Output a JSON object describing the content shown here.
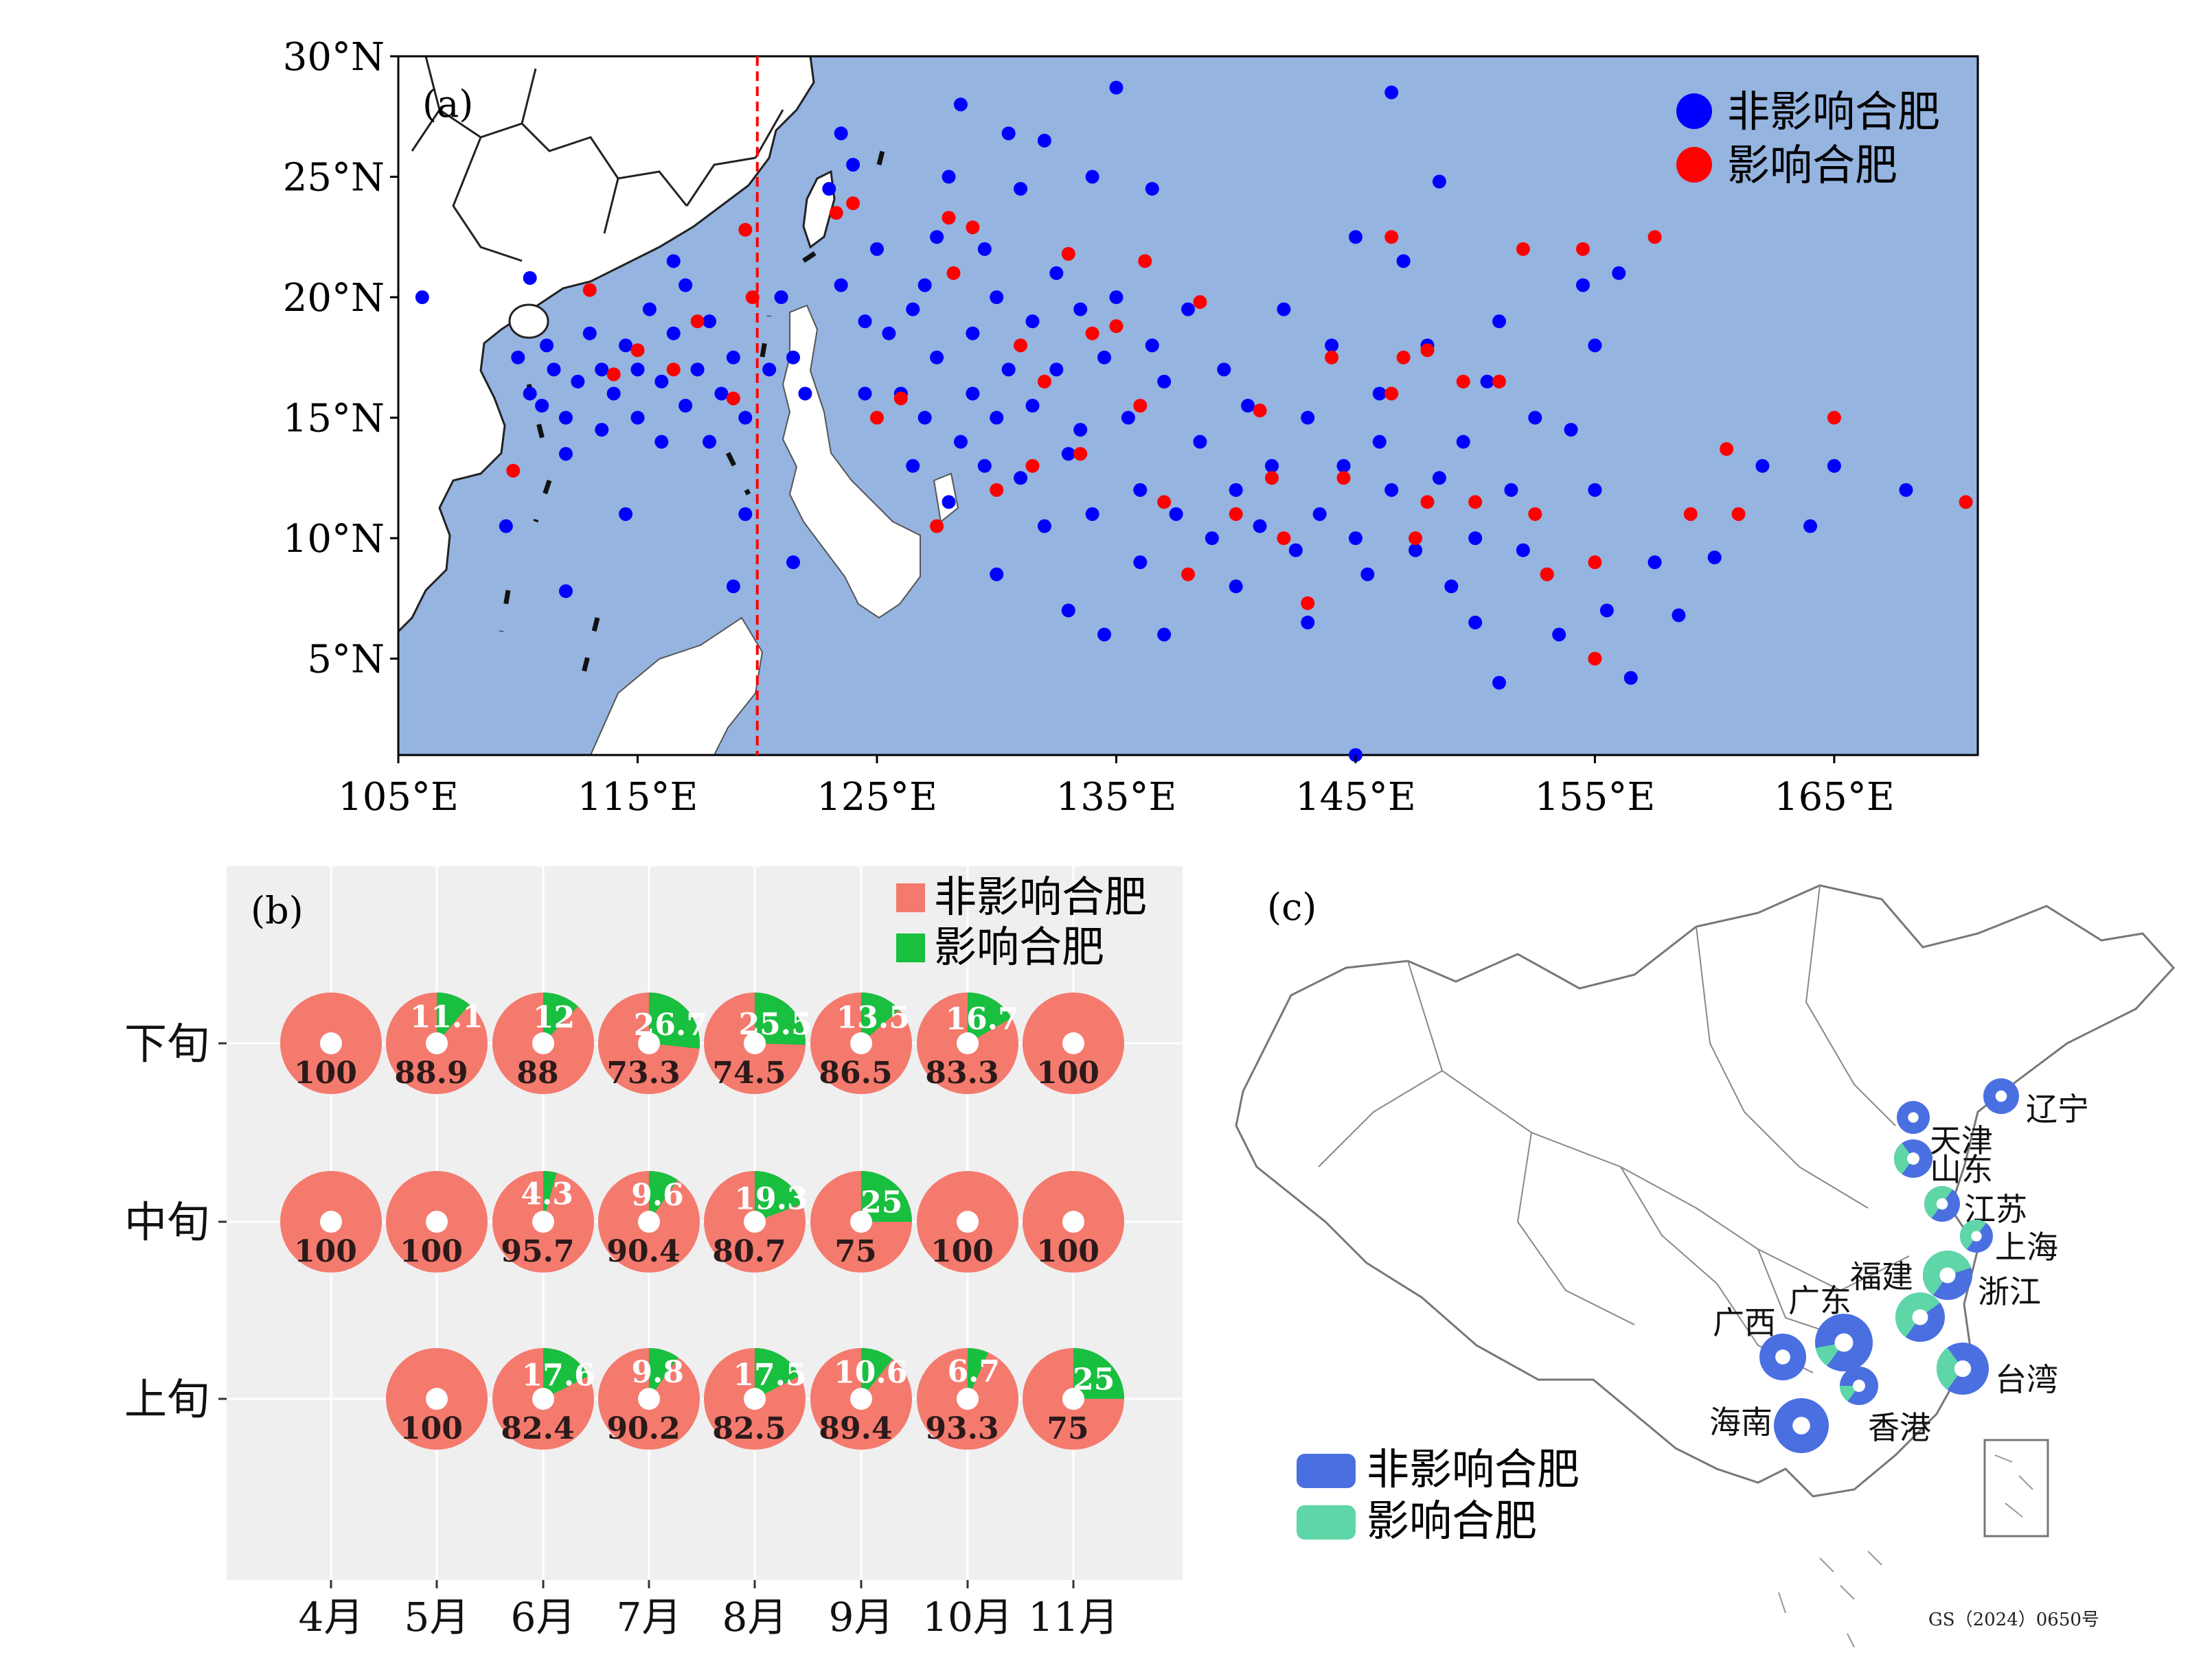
{
  "colors": {
    "ocean": "#95B4E0",
    "land": "#ffffff",
    "coast": "#222222",
    "non_affect_dot": "#0000FF",
    "affect_dot": "#FF0000",
    "boundary_line": "#FF0000",
    "pie_non_affect": "#F47A6E",
    "pie_affect": "#19BF3F",
    "panel_b_bg": "#EFEFEF",
    "map_non_affect": "#4A6FE0",
    "map_affect": "#5ED6A8"
  },
  "chart_data": [
    {
      "panel": "(a)",
      "type": "scatter",
      "title": "",
      "legend_position": "top-right",
      "xlim": [
        105,
        171
      ],
      "ylim": [
        1,
        30
      ],
      "x_ticks": [
        105,
        115,
        125,
        135,
        145,
        155,
        165
      ],
      "x_tick_labels": [
        "105°E",
        "115°E",
        "125°E",
        "135°E",
        "145°E",
        "155°E",
        "165°E"
      ],
      "y_ticks": [
        5,
        10,
        15,
        20,
        25,
        30
      ],
      "y_tick_labels": [
        "5°N",
        "10°N",
        "15°N",
        "20°N",
        "25°N",
        "30°N"
      ],
      "reference_line_lon": 120,
      "series": [
        {
          "name": "非影响合肥",
          "points": [
            [
              106.0,
              20.0
            ],
            [
              109.5,
              10.5
            ],
            [
              110.0,
              17.5
            ],
            [
              110.5,
              16.0
            ],
            [
              111.0,
              15.5
            ],
            [
              111.2,
              18.0
            ],
            [
              111.5,
              17.0
            ],
            [
              112.0,
              15.0
            ],
            [
              112.0,
              13.5
            ],
            [
              112.5,
              16.5
            ],
            [
              113.0,
              18.5
            ],
            [
              113.5,
              14.5
            ],
            [
              113.5,
              17.0
            ],
            [
              114.0,
              16.0
            ],
            [
              114.5,
              18.0
            ],
            [
              115.0,
              15.0
            ],
            [
              115.0,
              17.0
            ],
            [
              115.5,
              19.5
            ],
            [
              116.0,
              16.5
            ],
            [
              116.0,
              14.0
            ],
            [
              116.5,
              18.5
            ],
            [
              117.0,
              20.5
            ],
            [
              117.0,
              15.5
            ],
            [
              117.5,
              17.0
            ],
            [
              118.0,
              14.0
            ],
            [
              118.0,
              19.0
            ],
            [
              118.5,
              16.0
            ],
            [
              119.0,
              17.5
            ],
            [
              119.0,
              8.0
            ],
            [
              119.5,
              15.0
            ],
            [
              120.5,
              17.0
            ],
            [
              121.0,
              20.0
            ],
            [
              121.5,
              17.5
            ],
            [
              122.0,
              16.0
            ],
            [
              121.5,
              9.0
            ],
            [
              112.0,
              7.8
            ],
            [
              114.5,
              11.0
            ],
            [
              110.5,
              20.8
            ],
            [
              116.5,
              21.5
            ],
            [
              119.5,
              11.0
            ],
            [
              123.0,
              24.5
            ],
            [
              123.5,
              26.8
            ],
            [
              124.0,
              25.5
            ],
            [
              123.5,
              20.5
            ],
            [
              124.5,
              19.0
            ],
            [
              124.5,
              16.0
            ],
            [
              125.0,
              22.0
            ],
            [
              125.5,
              18.5
            ],
            [
              126.0,
              16.0
            ],
            [
              126.5,
              19.5
            ],
            [
              126.5,
              13.0
            ],
            [
              127.0,
              20.5
            ],
            [
              127.0,
              15.0
            ],
            [
              127.5,
              17.5
            ],
            [
              128.0,
              25.0
            ],
            [
              128.0,
              11.5
            ],
            [
              128.5,
              28.0
            ],
            [
              128.5,
              14.0
            ],
            [
              129.0,
              18.5
            ],
            [
              129.0,
              16.0
            ],
            [
              129.5,
              13.0
            ],
            [
              130.0,
              20.0
            ],
            [
              130.0,
              15.0
            ],
            [
              130.5,
              26.8
            ],
            [
              130.5,
              17.0
            ],
            [
              131.0,
              12.5
            ],
            [
              131.0,
              24.5
            ],
            [
              131.5,
              19.0
            ],
            [
              131.5,
              15.5
            ],
            [
              132.0,
              26.5
            ],
            [
              132.0,
              10.5
            ],
            [
              132.5,
              21.0
            ],
            [
              132.5,
              17.0
            ],
            [
              133.0,
              13.5
            ],
            [
              133.5,
              19.5
            ],
            [
              133.5,
              14.5
            ],
            [
              134.0,
              25.0
            ],
            [
              134.0,
              11.0
            ],
            [
              134.5,
              17.5
            ],
            [
              135.0,
              28.7
            ],
            [
              135.0,
              20.0
            ],
            [
              135.5,
              15.0
            ],
            [
              136.0,
              12.0
            ],
            [
              136.0,
              9.0
            ],
            [
              136.5,
              24.5
            ],
            [
              136.5,
              18.0
            ],
            [
              137.0,
              16.5
            ],
            [
              137.5,
              11.0
            ],
            [
              138.0,
              19.5
            ],
            [
              138.5,
              14.0
            ],
            [
              139.0,
              10.0
            ],
            [
              139.5,
              17.0
            ],
            [
              140.0,
              12.0
            ],
            [
              140.0,
              8.0
            ],
            [
              140.5,
              15.5
            ],
            [
              141.0,
              10.5
            ],
            [
              141.5,
              13.0
            ],
            [
              142.0,
              19.5
            ],
            [
              142.5,
              9.5
            ],
            [
              143.0,
              15.0
            ],
            [
              143.5,
              11.0
            ],
            [
              144.0,
              18.0
            ],
            [
              144.5,
              13.0
            ],
            [
              145.0,
              10.0
            ],
            [
              145.0,
              22.5
            ],
            [
              145.5,
              8.5
            ],
            [
              146.0,
              16.0
            ],
            [
              146.5,
              28.5
            ],
            [
              146.5,
              12.0
            ],
            [
              147.0,
              21.5
            ],
            [
              147.5,
              9.5
            ],
            [
              148.0,
              18.0
            ],
            [
              148.5,
              24.8
            ],
            [
              148.5,
              12.5
            ],
            [
              149.5,
              14.0
            ],
            [
              150.0,
              10.0
            ],
            [
              150.0,
              6.5
            ],
            [
              150.5,
              16.5
            ],
            [
              151.0,
              19.0
            ],
            [
              151.0,
              4.0
            ],
            [
              151.5,
              12.0
            ],
            [
              152.0,
              9.5
            ],
            [
              152.5,
              15.0
            ],
            [
              153.0,
              8.5
            ],
            [
              153.5,
              6.0
            ],
            [
              154.0,
              14.5
            ],
            [
              154.5,
              20.5
            ],
            [
              155.0,
              12.0
            ],
            [
              155.0,
              18.0
            ],
            [
              155.5,
              7.0
            ],
            [
              156.0,
              21.0
            ],
            [
              156.5,
              4.2
            ],
            [
              157.5,
              9.0
            ],
            [
              158.5,
              6.8
            ],
            [
              160.0,
              9.2
            ],
            [
              162.0,
              13.0
            ],
            [
              164.0,
              10.5
            ],
            [
              165.0,
              13.0
            ],
            [
              168.0,
              12.0
            ],
            [
              145.0,
              1.0
            ],
            [
              133.0,
              7.0
            ],
            [
              137.0,
              6.0
            ],
            [
              143.0,
              6.5
            ],
            [
              146.0,
              14.0
            ],
            [
              149.0,
              8.0
            ],
            [
              130.0,
              8.5
            ],
            [
              129.5,
              22.0
            ],
            [
              127.5,
              22.5
            ],
            [
              134.5,
              6.0
            ]
          ]
        },
        {
          "name": "影响合肥",
          "points": [
            [
              109.8,
              12.8
            ],
            [
              113.0,
              20.3
            ],
            [
              114.0,
              16.8
            ],
            [
              115.0,
              17.8
            ],
            [
              116.5,
              17.0
            ],
            [
              117.5,
              19.0
            ],
            [
              119.0,
              15.8
            ],
            [
              119.5,
              22.8
            ],
            [
              119.8,
              20.0
            ],
            [
              123.3,
              23.5
            ],
            [
              124.0,
              23.9
            ],
            [
              125.0,
              15.0
            ],
            [
              126.0,
              15.8
            ],
            [
              127.5,
              10.5
            ],
            [
              128.0,
              23.3
            ],
            [
              129.0,
              22.9
            ],
            [
              128.2,
              21.0
            ],
            [
              130.0,
              12.0
            ],
            [
              131.0,
              18.0
            ],
            [
              131.5,
              13.0
            ],
            [
              132.0,
              16.5
            ],
            [
              133.0,
              21.8
            ],
            [
              133.5,
              13.5
            ],
            [
              134.0,
              18.5
            ],
            [
              135.0,
              18.8
            ],
            [
              136.0,
              15.5
            ],
            [
              136.2,
              21.5
            ],
            [
              137.0,
              11.5
            ],
            [
              138.0,
              8.5
            ],
            [
              138.5,
              19.8
            ],
            [
              140.0,
              11.0
            ],
            [
              141.0,
              15.3
            ],
            [
              141.5,
              12.5
            ],
            [
              142.0,
              10.0
            ],
            [
              143.0,
              7.3
            ],
            [
              144.0,
              17.5
            ],
            [
              144.5,
              12.5
            ],
            [
              146.5,
              22.5
            ],
            [
              146.5,
              16.0
            ],
            [
              147.0,
              17.5
            ],
            [
              147.5,
              10.0
            ],
            [
              148.0,
              11.5
            ],
            [
              148.0,
              17.8
            ],
            [
              149.5,
              16.5
            ],
            [
              150.0,
              11.5
            ],
            [
              151.0,
              16.5
            ],
            [
              152.0,
              22.0
            ],
            [
              152.5,
              11.0
            ],
            [
              153.0,
              8.5
            ],
            [
              154.5,
              22.0
            ],
            [
              155.0,
              9.0
            ],
            [
              155.0,
              5.0
            ],
            [
              157.5,
              22.5
            ],
            [
              159.0,
              11.0
            ],
            [
              160.5,
              13.7
            ],
            [
              161.0,
              11.0
            ],
            [
              165.0,
              15.0
            ],
            [
              170.5,
              11.5
            ]
          ]
        }
      ]
    },
    {
      "panel": "(b)",
      "type": "pie",
      "legend_position": "top-right",
      "months": [
        "4月",
        "5月",
        "6月",
        "7月",
        "8月",
        "9月",
        "10月",
        "11月"
      ],
      "rows": [
        "下旬",
        "中旬",
        "上旬"
      ],
      "series_names": [
        "非影响合肥",
        "影响合肥"
      ],
      "cells": [
        {
          "row": "下旬",
          "month": "4月",
          "non_affect": "100",
          "affect": ""
        },
        {
          "row": "下旬",
          "month": "5月",
          "non_affect": "88.9",
          "affect": "11.1"
        },
        {
          "row": "下旬",
          "month": "6月",
          "non_affect": "88",
          "affect": "12"
        },
        {
          "row": "下旬",
          "month": "7月",
          "non_affect": "73.3",
          "affect": "26.7"
        },
        {
          "row": "下旬",
          "month": "8月",
          "non_affect": "74.5",
          "affect": "25.5"
        },
        {
          "row": "下旬",
          "month": "9月",
          "non_affect": "86.5",
          "affect": "13.5"
        },
        {
          "row": "下旬",
          "month": "10月",
          "non_affect": "83.3",
          "affect": "16.7"
        },
        {
          "row": "下旬",
          "month": "11月",
          "non_affect": "100",
          "affect": ""
        },
        {
          "row": "中旬",
          "month": "4月",
          "non_affect": "100",
          "affect": ""
        },
        {
          "row": "中旬",
          "month": "5月",
          "non_affect": "100",
          "affect": ""
        },
        {
          "row": "中旬",
          "month": "6月",
          "non_affect": "95.7",
          "affect": "4.3"
        },
        {
          "row": "中旬",
          "month": "7月",
          "non_affect": "90.4",
          "affect": "9.6"
        },
        {
          "row": "中旬",
          "month": "8月",
          "non_affect": "80.7",
          "affect": "19.3"
        },
        {
          "row": "中旬",
          "month": "9月",
          "non_affect": "75",
          "affect": "25"
        },
        {
          "row": "中旬",
          "month": "10月",
          "non_affect": "100",
          "affect": ""
        },
        {
          "row": "中旬",
          "month": "11月",
          "non_affect": "100",
          "affect": ""
        },
        {
          "row": "上旬",
          "month": "5月",
          "non_affect": "100",
          "affect": ""
        },
        {
          "row": "上旬",
          "month": "6月",
          "non_affect": "82.4",
          "affect": "17.6"
        },
        {
          "row": "上旬",
          "month": "7月",
          "non_affect": "90.2",
          "affect": "9.8"
        },
        {
          "row": "上旬",
          "month": "8月",
          "non_affect": "82.5",
          "affect": "17.5"
        },
        {
          "row": "上旬",
          "month": "9月",
          "non_affect": "89.4",
          "affect": "10.6"
        },
        {
          "row": "上旬",
          "month": "10月",
          "non_affect": "93.3",
          "affect": "6.7"
        },
        {
          "row": "上旬",
          "month": "11月",
          "non_affect": "75",
          "affect": "25"
        }
      ]
    },
    {
      "panel": "(c)",
      "type": "pie",
      "legend_position": "bottom-left",
      "series_names": [
        "非影响合肥",
        "影响合肥"
      ],
      "approval_note": "GS（2024）0650号",
      "provinces": [
        {
          "name": "辽宁",
          "affect_share": 0.0
        },
        {
          "name": "天津",
          "affect_share": 0.0
        },
        {
          "name": "山东",
          "affect_share": 0.3
        },
        {
          "name": "江苏",
          "affect_share": 0.5
        },
        {
          "name": "上海",
          "affect_share": 0.5
        },
        {
          "name": "浙江",
          "affect_share": 0.6
        },
        {
          "name": "福建",
          "affect_share": 0.55
        },
        {
          "name": "广东",
          "affect_share": 0.12
        },
        {
          "name": "广西",
          "affect_share": 0.0
        },
        {
          "name": "台湾",
          "affect_share": 0.3
        },
        {
          "name": "香港",
          "affect_share": 0.15
        },
        {
          "name": "海南",
          "affect_share": 0.0
        }
      ]
    }
  ]
}
